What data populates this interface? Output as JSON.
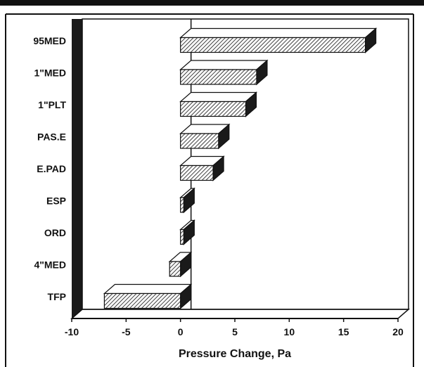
{
  "chart_data": {
    "type": "bar",
    "orientation": "horizontal",
    "style": "3d",
    "fill": "diagonal-hatch",
    "title": "",
    "xlabel": "Pressure Change, Pa",
    "ylabel": "",
    "xlim": [
      -10,
      20
    ],
    "xticks": [
      "-10",
      "-5",
      "0",
      "5",
      "10",
      "15",
      "20"
    ],
    "categories": [
      "95MED",
      "1\"MED",
      "1\"PLT",
      "PAS.E",
      "E.PAD",
      "ESP",
      "ORD",
      "4\"MED",
      "TFP"
    ],
    "values": [
      17,
      7,
      6,
      3.5,
      3,
      0.3,
      0.3,
      -1,
      -7
    ],
    "grid": false,
    "legend": "none",
    "colors": {
      "bar_face": "#ffffff",
      "hatch": "#111111",
      "bar_dark": "#1a1a1a",
      "frame": "#111111",
      "top_band": "#111111"
    }
  }
}
